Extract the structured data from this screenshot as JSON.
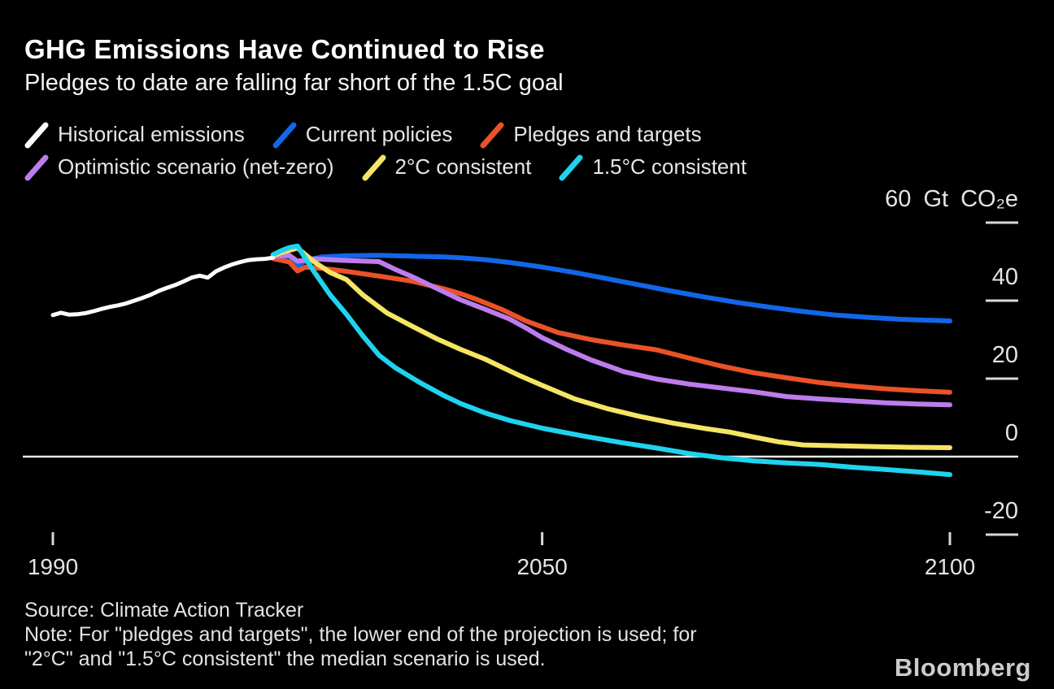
{
  "header": {
    "title": "GHG Emissions Have Continued to Rise",
    "subtitle": "Pledges to date are falling far short of the 1.5C goal"
  },
  "legend": {
    "rows": [
      [
        {
          "key": "historical-emissions",
          "label": "Historical emissions",
          "color": "#ffffff"
        },
        {
          "key": "current-policies",
          "label": "Current policies",
          "color": "#1266e8"
        },
        {
          "key": "pledges-and-targets",
          "label": "Pledges and targets",
          "color": "#ea5227"
        }
      ],
      [
        {
          "key": "optimistic-net-zero",
          "label": "Optimistic scenario (net-zero)",
          "color": "#bd7cec"
        },
        {
          "key": "two-c-consistent",
          "label": "2°C consistent",
          "color": "#f6e464"
        },
        {
          "key": "one-five-c-consistent",
          "label": "1.5°C consistent",
          "color": "#1fd3ee"
        }
      ]
    ]
  },
  "chart_data": {
    "type": "line",
    "unit": "Gt CO₂e",
    "xlim": [
      1990,
      2100
    ],
    "ylim": [
      -25,
      62
    ],
    "grid": false,
    "legend_position": "top-left",
    "zero_line": true,
    "y_ticks": [
      {
        "value": 60,
        "label": "60 Gt CO₂e"
      },
      {
        "value": 40,
        "label": "40"
      },
      {
        "value": 20,
        "label": "20"
      },
      {
        "value": 0,
        "label": "0"
      },
      {
        "value": -20,
        "label": "-20"
      }
    ],
    "x_ticks": [
      {
        "value": 1990,
        "label": "1990"
      },
      {
        "value": 2050,
        "label": "2050"
      },
      {
        "value": 2100,
        "label": "2100"
      }
    ],
    "series": [
      {
        "key": "current-policies",
        "name": "Current policies",
        "color": "#1266e8",
        "width": 6,
        "points": [
          [
            2017,
            51.0
          ],
          [
            2019,
            51.4
          ],
          [
            2020,
            48.8
          ],
          [
            2021,
            50.3
          ],
          [
            2023,
            51.2
          ],
          [
            2026,
            51.5
          ],
          [
            2030,
            51.6
          ],
          [
            2034,
            51.4
          ],
          [
            2038,
            51.2
          ],
          [
            2040,
            51.0
          ],
          [
            2043,
            50.5
          ],
          [
            2046,
            49.8
          ],
          [
            2050,
            48.6
          ],
          [
            2054,
            47.2
          ],
          [
            2058,
            45.6
          ],
          [
            2062,
            44.0
          ],
          [
            2066,
            42.4
          ],
          [
            2070,
            40.9
          ],
          [
            2074,
            39.5
          ],
          [
            2078,
            38.3
          ],
          [
            2082,
            37.2
          ],
          [
            2086,
            36.3
          ],
          [
            2090,
            35.7
          ],
          [
            2094,
            35.2
          ],
          [
            2100,
            34.8
          ]
        ]
      },
      {
        "key": "pledges-and-targets",
        "name": "Pledges and targets",
        "color": "#ea5227",
        "width": 6,
        "points": [
          [
            2017,
            50.8
          ],
          [
            2019,
            49.9
          ],
          [
            2020,
            47.6
          ],
          [
            2021,
            48.6
          ],
          [
            2023,
            48.3
          ],
          [
            2026,
            47.5
          ],
          [
            2030,
            46.3
          ],
          [
            2034,
            45.0
          ],
          [
            2038,
            43.0
          ],
          [
            2040,
            41.8
          ],
          [
            2042,
            40.3
          ],
          [
            2045,
            37.8
          ],
          [
            2048,
            34.8
          ],
          [
            2052,
            31.8
          ],
          [
            2056,
            30.0
          ],
          [
            2060,
            28.6
          ],
          [
            2064,
            27.4
          ],
          [
            2068,
            25.3
          ],
          [
            2072,
            23.2
          ],
          [
            2076,
            21.5
          ],
          [
            2080,
            20.2
          ],
          [
            2084,
            19.0
          ],
          [
            2088,
            18.1
          ],
          [
            2092,
            17.4
          ],
          [
            2096,
            16.9
          ],
          [
            2100,
            16.5
          ]
        ]
      },
      {
        "key": "optimistic-net-zero",
        "name": "Optimistic scenario (net-zero)",
        "color": "#bd7cec",
        "width": 6,
        "points": [
          [
            2017,
            51.3
          ],
          [
            2019,
            51.6
          ],
          [
            2020,
            50.1
          ],
          [
            2022,
            50.7
          ],
          [
            2026,
            50.3
          ],
          [
            2030,
            50.0
          ],
          [
            2032,
            48.0
          ],
          [
            2034,
            46.2
          ],
          [
            2036,
            44.2
          ],
          [
            2038,
            42.2
          ],
          [
            2040,
            40.2
          ],
          [
            2043,
            37.8
          ],
          [
            2046,
            35.3
          ],
          [
            2048,
            33.0
          ],
          [
            2050,
            30.5
          ],
          [
            2053,
            27.5
          ],
          [
            2056,
            24.8
          ],
          [
            2060,
            21.8
          ],
          [
            2064,
            19.9
          ],
          [
            2068,
            18.6
          ],
          [
            2072,
            17.6
          ],
          [
            2076,
            16.6
          ],
          [
            2080,
            15.4
          ],
          [
            2084,
            14.8
          ],
          [
            2088,
            14.3
          ],
          [
            2092,
            13.8
          ],
          [
            2096,
            13.5
          ],
          [
            2100,
            13.3
          ]
        ]
      },
      {
        "key": "two-c-consistent",
        "name": "2°C consistent",
        "color": "#f6e464",
        "width": 6,
        "points": [
          [
            2017,
            51.5
          ],
          [
            2018,
            52.3
          ],
          [
            2020,
            53.5
          ],
          [
            2022,
            50.0
          ],
          [
            2024,
            47.2
          ],
          [
            2026,
            45.4
          ],
          [
            2028,
            41.5
          ],
          [
            2031,
            36.8
          ],
          [
            2034,
            33.5
          ],
          [
            2037,
            30.3
          ],
          [
            2040,
            27.5
          ],
          [
            2043,
            25.0
          ],
          [
            2047,
            21.0
          ],
          [
            2050,
            18.3
          ],
          [
            2054,
            14.8
          ],
          [
            2058,
            12.3
          ],
          [
            2062,
            10.3
          ],
          [
            2066,
            8.6
          ],
          [
            2070,
            7.2
          ],
          [
            2073,
            6.3
          ],
          [
            2076,
            5.0
          ],
          [
            2079,
            3.8
          ],
          [
            2082,
            3.0
          ],
          [
            2086,
            2.8
          ],
          [
            2090,
            2.6
          ],
          [
            2095,
            2.4
          ],
          [
            2100,
            2.3
          ]
        ]
      },
      {
        "key": "one-five-c-consistent",
        "name": "1.5°C consistent",
        "color": "#1fd3ee",
        "width": 6,
        "points": [
          [
            2017,
            51.8
          ],
          [
            2018,
            52.8
          ],
          [
            2019,
            53.6
          ],
          [
            2020,
            54.0
          ],
          [
            2022,
            47.5
          ],
          [
            2024,
            41.5
          ],
          [
            2026,
            36.5
          ],
          [
            2028,
            31.0
          ],
          [
            2030,
            26.0
          ],
          [
            2032,
            22.8
          ],
          [
            2035,
            19.0
          ],
          [
            2038,
            15.6
          ],
          [
            2040,
            13.6
          ],
          [
            2043,
            11.2
          ],
          [
            2046,
            9.3
          ],
          [
            2050,
            7.3
          ],
          [
            2055,
            5.3
          ],
          [
            2060,
            3.5
          ],
          [
            2064,
            2.2
          ],
          [
            2068,
            0.8
          ],
          [
            2072,
            -0.3
          ],
          [
            2076,
            -1.1
          ],
          [
            2080,
            -1.6
          ],
          [
            2084,
            -2.0
          ],
          [
            2088,
            -2.7
          ],
          [
            2092,
            -3.3
          ],
          [
            2096,
            -3.9
          ],
          [
            2100,
            -4.6
          ]
        ]
      },
      {
        "key": "historical-emissions",
        "name": "Historical emissions",
        "color": "#ffffff",
        "width": 5,
        "points": [
          [
            1990,
            36.3
          ],
          [
            1991,
            36.9
          ],
          [
            1992,
            36.4
          ],
          [
            1993,
            36.5
          ],
          [
            1994,
            36.8
          ],
          [
            1995,
            37.3
          ],
          [
            1996,
            37.9
          ],
          [
            1997,
            38.4
          ],
          [
            1998,
            38.8
          ],
          [
            1999,
            39.3
          ],
          [
            2000,
            40.0
          ],
          [
            2001,
            40.7
          ],
          [
            2002,
            41.5
          ],
          [
            2003,
            42.5
          ],
          [
            2004,
            43.3
          ],
          [
            2005,
            44.0
          ],
          [
            2006,
            44.9
          ],
          [
            2007,
            45.9
          ],
          [
            2008,
            46.4
          ],
          [
            2009,
            45.9
          ],
          [
            2010,
            47.5
          ],
          [
            2011,
            48.5
          ],
          [
            2012,
            49.3
          ],
          [
            2013,
            49.9
          ],
          [
            2014,
            50.4
          ],
          [
            2015,
            50.6
          ],
          [
            2016,
            50.7
          ],
          [
            2017,
            51.0
          ]
        ]
      }
    ]
  },
  "footer": {
    "source": "Source: Climate Action Tracker",
    "note_line1": "Note: For \"pledges and targets\", the lower end of the projection is used; for",
    "note_line2": "\"2°C\" and \"1.5°C consistent\" the median scenario is used.",
    "logo": "Bloomberg"
  }
}
